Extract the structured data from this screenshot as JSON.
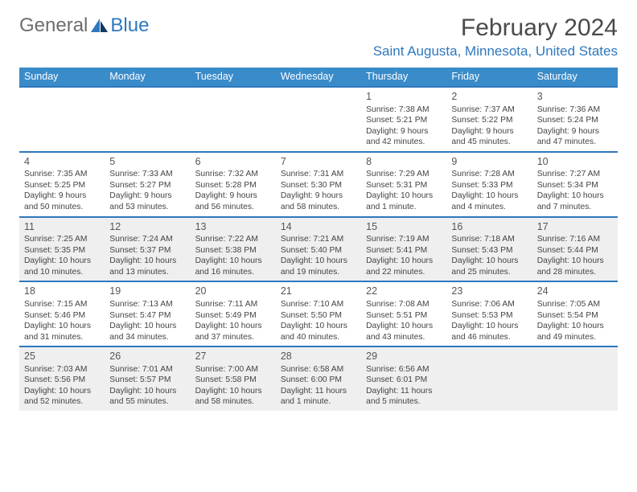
{
  "logo": {
    "word1": "General",
    "word2": "Blue"
  },
  "title": "February 2024",
  "location": "Saint Augusta, Minnesota, United States",
  "colors": {
    "header_bg": "#3a8bc9",
    "header_text": "#ffffff",
    "accent_border": "#2e78bd",
    "alt_row_bg": "#efefef",
    "body_text": "#444444",
    "title_text": "#4a4a4a",
    "location_text": "#2e78bd",
    "logo_grey": "#6d6d6d"
  },
  "weekdays": [
    "Sunday",
    "Monday",
    "Tuesday",
    "Wednesday",
    "Thursday",
    "Friday",
    "Saturday"
  ],
  "rows": [
    {
      "alt": false,
      "days": [
        {
          "num": "",
          "sunrise": "",
          "sunset": "",
          "daylight": ""
        },
        {
          "num": "",
          "sunrise": "",
          "sunset": "",
          "daylight": ""
        },
        {
          "num": "",
          "sunrise": "",
          "sunset": "",
          "daylight": ""
        },
        {
          "num": "",
          "sunrise": "",
          "sunset": "",
          "daylight": ""
        },
        {
          "num": "1",
          "sunrise": "Sunrise: 7:38 AM",
          "sunset": "Sunset: 5:21 PM",
          "daylight": "Daylight: 9 hours and 42 minutes."
        },
        {
          "num": "2",
          "sunrise": "Sunrise: 7:37 AM",
          "sunset": "Sunset: 5:22 PM",
          "daylight": "Daylight: 9 hours and 45 minutes."
        },
        {
          "num": "3",
          "sunrise": "Sunrise: 7:36 AM",
          "sunset": "Sunset: 5:24 PM",
          "daylight": "Daylight: 9 hours and 47 minutes."
        }
      ]
    },
    {
      "alt": false,
      "days": [
        {
          "num": "4",
          "sunrise": "Sunrise: 7:35 AM",
          "sunset": "Sunset: 5:25 PM",
          "daylight": "Daylight: 9 hours and 50 minutes."
        },
        {
          "num": "5",
          "sunrise": "Sunrise: 7:33 AM",
          "sunset": "Sunset: 5:27 PM",
          "daylight": "Daylight: 9 hours and 53 minutes."
        },
        {
          "num": "6",
          "sunrise": "Sunrise: 7:32 AM",
          "sunset": "Sunset: 5:28 PM",
          "daylight": "Daylight: 9 hours and 56 minutes."
        },
        {
          "num": "7",
          "sunrise": "Sunrise: 7:31 AM",
          "sunset": "Sunset: 5:30 PM",
          "daylight": "Daylight: 9 hours and 58 minutes."
        },
        {
          "num": "8",
          "sunrise": "Sunrise: 7:29 AM",
          "sunset": "Sunset: 5:31 PM",
          "daylight": "Daylight: 10 hours and 1 minute."
        },
        {
          "num": "9",
          "sunrise": "Sunrise: 7:28 AM",
          "sunset": "Sunset: 5:33 PM",
          "daylight": "Daylight: 10 hours and 4 minutes."
        },
        {
          "num": "10",
          "sunrise": "Sunrise: 7:27 AM",
          "sunset": "Sunset: 5:34 PM",
          "daylight": "Daylight: 10 hours and 7 minutes."
        }
      ]
    },
    {
      "alt": true,
      "days": [
        {
          "num": "11",
          "sunrise": "Sunrise: 7:25 AM",
          "sunset": "Sunset: 5:35 PM",
          "daylight": "Daylight: 10 hours and 10 minutes."
        },
        {
          "num": "12",
          "sunrise": "Sunrise: 7:24 AM",
          "sunset": "Sunset: 5:37 PM",
          "daylight": "Daylight: 10 hours and 13 minutes."
        },
        {
          "num": "13",
          "sunrise": "Sunrise: 7:22 AM",
          "sunset": "Sunset: 5:38 PM",
          "daylight": "Daylight: 10 hours and 16 minutes."
        },
        {
          "num": "14",
          "sunrise": "Sunrise: 7:21 AM",
          "sunset": "Sunset: 5:40 PM",
          "daylight": "Daylight: 10 hours and 19 minutes."
        },
        {
          "num": "15",
          "sunrise": "Sunrise: 7:19 AM",
          "sunset": "Sunset: 5:41 PM",
          "daylight": "Daylight: 10 hours and 22 minutes."
        },
        {
          "num": "16",
          "sunrise": "Sunrise: 7:18 AM",
          "sunset": "Sunset: 5:43 PM",
          "daylight": "Daylight: 10 hours and 25 minutes."
        },
        {
          "num": "17",
          "sunrise": "Sunrise: 7:16 AM",
          "sunset": "Sunset: 5:44 PM",
          "daylight": "Daylight: 10 hours and 28 minutes."
        }
      ]
    },
    {
      "alt": false,
      "days": [
        {
          "num": "18",
          "sunrise": "Sunrise: 7:15 AM",
          "sunset": "Sunset: 5:46 PM",
          "daylight": "Daylight: 10 hours and 31 minutes."
        },
        {
          "num": "19",
          "sunrise": "Sunrise: 7:13 AM",
          "sunset": "Sunset: 5:47 PM",
          "daylight": "Daylight: 10 hours and 34 minutes."
        },
        {
          "num": "20",
          "sunrise": "Sunrise: 7:11 AM",
          "sunset": "Sunset: 5:49 PM",
          "daylight": "Daylight: 10 hours and 37 minutes."
        },
        {
          "num": "21",
          "sunrise": "Sunrise: 7:10 AM",
          "sunset": "Sunset: 5:50 PM",
          "daylight": "Daylight: 10 hours and 40 minutes."
        },
        {
          "num": "22",
          "sunrise": "Sunrise: 7:08 AM",
          "sunset": "Sunset: 5:51 PM",
          "daylight": "Daylight: 10 hours and 43 minutes."
        },
        {
          "num": "23",
          "sunrise": "Sunrise: 7:06 AM",
          "sunset": "Sunset: 5:53 PM",
          "daylight": "Daylight: 10 hours and 46 minutes."
        },
        {
          "num": "24",
          "sunrise": "Sunrise: 7:05 AM",
          "sunset": "Sunset: 5:54 PM",
          "daylight": "Daylight: 10 hours and 49 minutes."
        }
      ]
    },
    {
      "alt": true,
      "days": [
        {
          "num": "25",
          "sunrise": "Sunrise: 7:03 AM",
          "sunset": "Sunset: 5:56 PM",
          "daylight": "Daylight: 10 hours and 52 minutes."
        },
        {
          "num": "26",
          "sunrise": "Sunrise: 7:01 AM",
          "sunset": "Sunset: 5:57 PM",
          "daylight": "Daylight: 10 hours and 55 minutes."
        },
        {
          "num": "27",
          "sunrise": "Sunrise: 7:00 AM",
          "sunset": "Sunset: 5:58 PM",
          "daylight": "Daylight: 10 hours and 58 minutes."
        },
        {
          "num": "28",
          "sunrise": "Sunrise: 6:58 AM",
          "sunset": "Sunset: 6:00 PM",
          "daylight": "Daylight: 11 hours and 1 minute."
        },
        {
          "num": "29",
          "sunrise": "Sunrise: 6:56 AM",
          "sunset": "Sunset: 6:01 PM",
          "daylight": "Daylight: 11 hours and 5 minutes."
        },
        {
          "num": "",
          "sunrise": "",
          "sunset": "",
          "daylight": ""
        },
        {
          "num": "",
          "sunrise": "",
          "sunset": "",
          "daylight": ""
        }
      ]
    }
  ]
}
